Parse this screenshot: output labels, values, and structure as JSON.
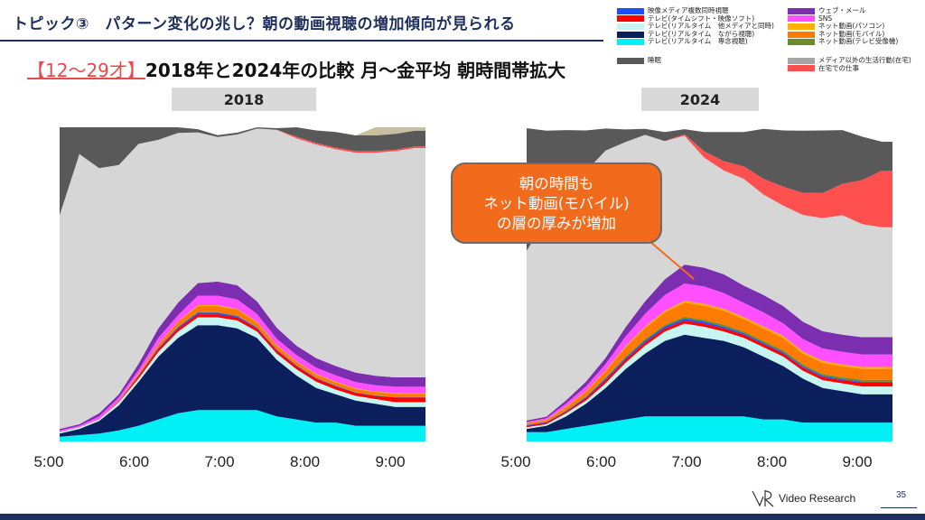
{
  "header": {
    "title": "トピック③　パターン変化の兆し？朝の動画視聴の増加傾向が見られる",
    "subtitle_age": "【12～29才】",
    "subtitle_rest": "2018年と2024年の比較  月～金平均 朝時間帯拡大"
  },
  "callout": {
    "lines": [
      "朝の時間も",
      "ネット動画(モバイル)",
      "の層の厚みが増加"
    ]
  },
  "footer": {
    "logo_text": "Video Research",
    "page_number": "35"
  },
  "chart_data": [
    {
      "type": "area",
      "stacked": true,
      "normalized_percent": true,
      "title": "2018",
      "x": [
        "5:00",
        "5:15",
        "5:30",
        "5:45",
        "6:00",
        "6:15",
        "6:30",
        "6:45",
        "7:00",
        "7:15",
        "7:30",
        "7:45",
        "8:00",
        "8:15",
        "8:30",
        "8:45",
        "9:00",
        "9:15",
        "9:30"
      ],
      "xtick_labels": [
        "5:00",
        "6:00",
        "7:00",
        "8:00",
        "9:00"
      ],
      "ylim": [
        0,
        100
      ],
      "grid": false,
      "legend": "top-right",
      "series": [
        {
          "name": "テレビ(リアルタイム 専念視聴)",
          "color": "#00f0f5",
          "values": [
            1.5,
            2,
            2.5,
            3.5,
            5,
            7,
            9,
            10,
            10,
            10,
            10,
            8,
            7,
            6,
            6,
            5,
            5,
            5,
            5
          ]
        },
        {
          "name": "テレビ(リアルタイム ながら視聴)",
          "color": "#0b1f5c",
          "values": [
            1,
            2,
            4,
            8,
            14,
            20,
            24,
            27,
            27,
            26,
            23,
            18,
            14,
            11,
            9,
            8,
            7,
            6,
            6
          ]
        },
        {
          "name": "テレビ(リアルタイム 他メディアと同時)",
          "color": "#c6f5f2",
          "values": [
            0.5,
            0.5,
            0.5,
            1,
            1,
            1.5,
            2,
            2.5,
            2.5,
            2.5,
            2,
            2,
            2,
            2,
            1.5,
            1.5,
            1.5,
            1.5,
            1.5
          ]
        },
        {
          "name": "テレビ(タイムシフト・映像ソフト)",
          "color": "#ff0000",
          "values": [
            0,
            0,
            0,
            0.3,
            0.8,
            1,
            1,
            1,
            1,
            1,
            1,
            1,
            1,
            1,
            1,
            1,
            1,
            1.5,
            1.5
          ]
        },
        {
          "name": "映像メディア複数同時視聴",
          "color": "#1a4fff",
          "values": [
            0,
            0,
            0,
            0,
            0.2,
            0.3,
            0.4,
            0.5,
            0.5,
            0.4,
            0.3,
            0.2,
            0.2,
            0.2,
            0.2,
            0.1,
            0.1,
            0.1,
            0.1
          ]
        },
        {
          "name": "ネット動画(テレビ受像機)",
          "color": "#6e8a2c",
          "values": [
            0,
            0,
            0,
            0,
            0.1,
            0.1,
            0.1,
            0.1,
            0.1,
            0.1,
            0.1,
            0.1,
            0.1,
            0.1,
            0.1,
            0.1,
            0.1,
            0.1,
            0.1
          ]
        },
        {
          "name": "ネット動画(モバイル)",
          "color": "#ff7a00",
          "values": [
            0,
            0,
            0,
            0.2,
            0.5,
            1,
            1.5,
            2,
            2,
            2,
            1.5,
            1.2,
            1,
            1,
            1,
            1,
            1,
            1,
            1
          ]
        },
        {
          "name": "ネット動画(パソコン)",
          "color": "#ffb000",
          "values": [
            0,
            0,
            0,
            0,
            0.1,
            0.1,
            0.2,
            0.3,
            0.3,
            0.2,
            0.2,
            0.2,
            0.2,
            0.2,
            0.2,
            0.2,
            0.2,
            0.2,
            0.2
          ]
        },
        {
          "name": "SNS",
          "color": "#ff4fff",
          "values": [
            0.5,
            0.5,
            1,
            1,
            1,
            2,
            2,
            3,
            3,
            3,
            2.5,
            2,
            2,
            2,
            2,
            2,
            2,
            2,
            2
          ]
        },
        {
          "name": "ウェブ・メール",
          "color": "#7b2fb0",
          "values": [
            0.5,
            0.5,
            1,
            1,
            2,
            3,
            4,
            4,
            4.5,
            4.5,
            4,
            3.5,
            3,
            3,
            3,
            3,
            3,
            3,
            3
          ]
        },
        {
          "name": "メディア以外の生活行動(在宅)",
          "color": "#d6d6d6",
          "values": [
            68,
            86,
            78,
            73,
            70,
            60,
            54,
            48,
            46,
            48,
            55,
            63,
            66,
            68,
            69,
            70,
            71,
            72,
            73
          ]
        },
        {
          "name": "在宅での仕事",
          "color": "#ff5050",
          "values": [
            0,
            0,
            0,
            0,
            0,
            0,
            0,
            0,
            0,
            0,
            0,
            0,
            0.5,
            0.5,
            0.5,
            0.5,
            0.5,
            0.5,
            0.5
          ]
        },
        {
          "name": "睡眠",
          "color": "#595959",
          "values": [
            28,
            10,
            14,
            15,
            10,
            8,
            4,
            1,
            0.6,
            0.6,
            0.5,
            0.5,
            3,
            4,
            5,
            5,
            5,
            5,
            5
          ]
        },
        {
          "name": "",
          "color": "#c8bf9f",
          "values": [
            0,
            0,
            0,
            0,
            0,
            0,
            0,
            0,
            0,
            0,
            0,
            0,
            0,
            0,
            0,
            0,
            3,
            3,
            3
          ]
        }
      ]
    },
    {
      "type": "area",
      "stacked": true,
      "normalized_percent": true,
      "title": "2024",
      "x": [
        "5:00",
        "5:15",
        "5:30",
        "5:45",
        "6:00",
        "6:15",
        "6:30",
        "6:45",
        "7:00",
        "7:15",
        "7:30",
        "7:45",
        "8:00",
        "8:15",
        "8:30",
        "8:45",
        "9:00",
        "9:15",
        "9:30"
      ],
      "xtick_labels": [
        "5:00",
        "6:00",
        "7:00",
        "8:00",
        "9:00"
      ],
      "ylim": [
        0,
        100
      ],
      "grid": false,
      "legend": "top-right",
      "series": [
        {
          "name": "テレビ(リアルタイム 専念視聴)",
          "color": "#00f0f5",
          "values": [
            3,
            3,
            4,
            5,
            6,
            7,
            8,
            8,
            8,
            8,
            8,
            8,
            7,
            7,
            6,
            6,
            6,
            6,
            6
          ]
        },
        {
          "name": "テレビ(リアルタイム ながら視聴)",
          "color": "#0b1f5c",
          "values": [
            1,
            2,
            4,
            7,
            11,
            16,
            20,
            24,
            26,
            25,
            24,
            22,
            20,
            17,
            14,
            11,
            10,
            9,
            9
          ]
        },
        {
          "name": "テレビ(リアルタイム 他メディアと同時)",
          "color": "#c6f5f2",
          "values": [
            0.5,
            0.5,
            1,
            1,
            1.5,
            2,
            2.5,
            3,
            3.5,
            3.5,
            3,
            3,
            3,
            3,
            2.5,
            2.5,
            2.5,
            2.5,
            2.5
          ]
        },
        {
          "name": "テレビ(タイムシフト・映像ソフト)",
          "color": "#ff0000",
          "values": [
            0.5,
            0.5,
            0.5,
            0.8,
            1,
            1,
            1,
            1,
            1,
            1,
            1,
            1,
            1,
            1,
            1,
            1,
            1,
            1.2,
            1.2
          ]
        },
        {
          "name": "映像メディア複数同時視聴",
          "color": "#1a4fff",
          "values": [
            0.2,
            0.2,
            0.2,
            0.3,
            0.5,
            0.5,
            0.6,
            0.6,
            0.6,
            0.6,
            0.5,
            0.4,
            0.4,
            0.4,
            0.4,
            0.4,
            0.3,
            0.3,
            0.3
          ]
        },
        {
          "name": "ネット動画(テレビ受像機)",
          "color": "#6e8a2c",
          "values": [
            0.1,
            0.1,
            0.2,
            0.2,
            0.3,
            0.4,
            0.5,
            0.5,
            0.6,
            0.6,
            0.6,
            0.6,
            0.6,
            0.6,
            0.6,
            0.6,
            0.6,
            0.6,
            0.6
          ]
        },
        {
          "name": "ネット動画(モバイル)",
          "color": "#ff7a00",
          "values": [
            0.5,
            0.5,
            1,
            1.5,
            2,
            3,
            3.5,
            4,
            4.5,
            4.5,
            4.5,
            4,
            4,
            4,
            3.5,
            3.5,
            3.5,
            3.5,
            3.5
          ]
        },
        {
          "name": "ネット動画(パソコン)",
          "color": "#ffb000",
          "values": [
            0.1,
            0.1,
            0.2,
            0.2,
            0.3,
            0.4,
            0.5,
            0.5,
            0.6,
            0.6,
            0.6,
            0.6,
            0.6,
            0.6,
            0.6,
            0.6,
            0.6,
            0.6,
            0.6
          ]
        },
        {
          "name": "SNS",
          "color": "#ff4fff",
          "values": [
            0.3,
            0.5,
            1,
            1.5,
            2,
            3,
            4,
            5,
            5.5,
            5.5,
            5,
            4.5,
            4.5,
            4,
            4,
            4,
            4,
            4,
            4
          ]
        },
        {
          "name": "ウェブ・メール",
          "color": "#7b2fb0",
          "values": [
            0.5,
            0.5,
            1,
            1.5,
            2,
            3,
            4,
            5,
            6,
            6,
            6,
            5.5,
            5.5,
            5.5,
            5.5,
            5.5,
            5.5,
            5.5,
            5.5
          ]
        },
        {
          "name": "メディア以外の生活行動(在宅)",
          "color": "#d6d6d6",
          "values": [
            54,
            63,
            68,
            67,
            66,
            59,
            53,
            44,
            41,
            35,
            33,
            34,
            32,
            32,
            34,
            36,
            38,
            36,
            35
          ]
        },
        {
          "name": "在宅での仕事",
          "color": "#ff5050",
          "values": [
            0,
            0,
            0,
            0,
            0,
            0,
            0,
            0,
            0.5,
            2,
            3,
            4,
            5,
            6,
            7,
            8,
            10,
            14,
            18
          ]
        },
        {
          "name": "睡眠",
          "color": "#595959",
          "values": [
            39,
            28,
            18,
            13,
            7,
            4,
            1.9,
            2.9,
            1.6,
            6.2,
            9.3,
            10.9,
            15.9,
            17.9,
            19.8,
            19.9,
            17.1,
            13.8,
            9.2
          ]
        }
      ]
    }
  ],
  "legend_left": [
    {
      "label": "映像メディア複数同時視聴",
      "color": "#1a4fff"
    },
    {
      "label": "テレビ(タイムシフト・映像ソフト)",
      "color": "#ff0000"
    },
    {
      "label": "テレビ(リアルタイム　他メディアと同時)",
      "color": "#c6f5f2"
    },
    {
      "label": "テレビ(リアルタイム　ながら視聴)",
      "color": "#0b1f5c"
    },
    {
      "label": "テレビ(リアルタイム　専念視聴)",
      "color": "#00f0f5"
    },
    {
      "label": "睡眠",
      "color": "#595959"
    }
  ],
  "legend_right": [
    {
      "label": "ウェブ・メール",
      "color": "#7b2fb0"
    },
    {
      "label": "SNS",
      "color": "#ff4fff"
    },
    {
      "label": "ネット動画(パソコン)",
      "color": "#ffb000"
    },
    {
      "label": "ネット動画(モバイル)",
      "color": "#ff7a00"
    },
    {
      "label": "ネット動画(テレビ受像機)",
      "color": "#6e8a2c"
    },
    {
      "label": "メディア以外の生活行動(在宅)",
      "color": "#a6a6a6"
    },
    {
      "label": "在宅での仕事",
      "color": "#ff5050"
    }
  ]
}
